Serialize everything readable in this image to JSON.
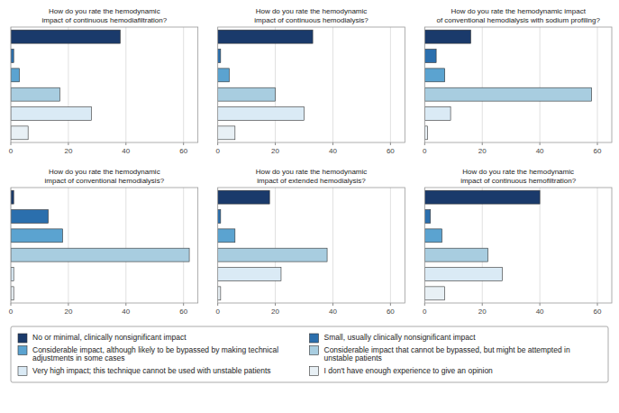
{
  "chart_data": [
    {
      "type": "bar",
      "orientation": "horizontal",
      "title": "How do you rate the hemodynamic\nimpact of continuous hemodiafiltration?",
      "categories": [
        "No or minimal, clinically nonsignificant impact",
        "Small, usually clinically nonsignificant impact",
        "Considerable impact, although likely to be bypassed by making technical\nadjustments in some cases",
        "Considerable impact that cannot be bypassed, but might be attempted in\nunstable patients",
        "Very high impact; this technique cannot be used with unstable patients",
        "I don't have enough experience to give an opinion"
      ],
      "values": [
        38,
        1,
        3,
        17,
        28,
        6
      ],
      "colors": [
        "#1a3a6b",
        "#2b6fad",
        "#5ba3d0",
        "#a8cde0",
        "#daeaf5",
        "#e8f0f5"
      ],
      "xlim": [
        0,
        65
      ],
      "xticks": [
        0,
        20,
        40,
        60
      ],
      "grid": true,
      "tick_labels": "x",
      "legend": "bottom"
    },
    {
      "type": "bar",
      "orientation": "horizontal",
      "title": "How do you rate the hemodynamic\nimpact of continuous hemodialysis?",
      "categories": [
        "No or minimal, clinically nonsignificant impact",
        "Small, usually clinically nonsignificant impact",
        "Considerable impact, although likely to be bypassed by making technical\nadjustments in some cases",
        "Considerable impact that cannot be bypassed, but might be attempted in\nunstable patients",
        "Very high impact; this technique cannot be used with unstable patients",
        "I don't have enough experience to give an opinion"
      ],
      "values": [
        33,
        1,
        4,
        20,
        30,
        6
      ],
      "colors": [
        "#1a3a6b",
        "#2b6fad",
        "#5ba3d0",
        "#a8cde0",
        "#daeaf5",
        "#e8f0f5"
      ],
      "xlim": [
        0,
        65
      ],
      "xticks": [
        0,
        20,
        40,
        60
      ],
      "grid": true,
      "tick_labels": "x",
      "legend": "bottom"
    },
    {
      "type": "bar",
      "orientation": "horizontal",
      "title": "How do you rate the hemodynamic impact\nof conventional hemodialysis with sodium profiling?",
      "categories": [
        "No or minimal, clinically nonsignificant impact",
        "Small, usually clinically nonsignificant impact",
        "Considerable impact, although likely to be bypassed by making technical\nadjustments in some cases",
        "Considerable impact that cannot be bypassed, but might be attempted in\nunstable patients",
        "Very high impact; this technique cannot be used with unstable patients",
        "I don't have enough experience to give an opinion"
      ],
      "values": [
        16,
        4,
        7,
        58,
        9,
        1
      ],
      "colors": [
        "#1a3a6b",
        "#2b6fad",
        "#5ba3d0",
        "#a8cde0",
        "#daeaf5",
        "#e8f0f5"
      ],
      "xlim": [
        0,
        65
      ],
      "xticks": [
        0,
        20,
        40,
        60
      ],
      "grid": true,
      "tick_labels": "x",
      "legend": "bottom"
    },
    {
      "type": "bar",
      "orientation": "horizontal",
      "title": "How do you rate the hemodynamic\nimpact of conventional hemodialysis?",
      "categories": [
        "No or minimal, clinically nonsignificant impact",
        "Small, usually clinically nonsignificant impact",
        "Considerable impact, although likely to be bypassed by making technical\nadjustments in some cases",
        "Considerable impact that cannot be bypassed, but might be attempted in\nunstable patients",
        "Very high impact; this technique cannot be used with unstable patients",
        "I don't have enough experience to give an opinion"
      ],
      "values": [
        1,
        13,
        18,
        62,
        1,
        1
      ],
      "colors": [
        "#1a3a6b",
        "#2b6fad",
        "#5ba3d0",
        "#a8cde0",
        "#daeaf5",
        "#e8f0f5"
      ],
      "xlim": [
        0,
        65
      ],
      "xticks": [
        0,
        20,
        40,
        60
      ],
      "grid": true,
      "tick_labels": "x",
      "legend": "bottom"
    },
    {
      "type": "bar",
      "orientation": "horizontal",
      "title": "How do you rate the hemodynamic\nimpact of extended hemodialysis?",
      "categories": [
        "No or minimal, clinically nonsignificant impact",
        "Small, usually clinically nonsignificant impact",
        "Considerable impact, although likely to be bypassed by making technical\nadjustments in some cases",
        "Considerable impact that cannot be bypassed, but might be attempted in\nunstable patients",
        "Very high impact; this technique cannot be used with unstable patients",
        "I don't have enough experience to give an opinion"
      ],
      "values": [
        18,
        1,
        6,
        38,
        22,
        1
      ],
      "colors": [
        "#1a3a6b",
        "#2b6fad",
        "#5ba3d0",
        "#a8cde0",
        "#daeaf5",
        "#e8f0f5"
      ],
      "xlim": [
        0,
        65
      ],
      "xticks": [
        0,
        20,
        40,
        60
      ],
      "grid": true,
      "tick_labels": "x",
      "legend": "bottom"
    },
    {
      "type": "bar",
      "orientation": "horizontal",
      "title": "How do you rate the hemodynamic\nimpact of continuous hemofiltration?",
      "categories": [
        "No or minimal, clinically nonsignificant impact",
        "Small, usually clinically nonsignificant impact",
        "Considerable impact, although likely to be bypassed by making technical\nadjustments in some cases",
        "Considerable impact that cannot be bypassed, but might be attempted in\nunstable patients",
        "Very high impact; this technique cannot be used with unstable patients",
        "I don't have enough experience to give an opinion"
      ],
      "values": [
        40,
        2,
        6,
        22,
        27,
        7
      ],
      "colors": [
        "#1a3a6b",
        "#2b6fad",
        "#5ba3d0",
        "#a8cde0",
        "#daeaf5",
        "#e8f0f5"
      ],
      "xlim": [
        0,
        65
      ],
      "xticks": [
        0,
        20,
        40,
        60
      ],
      "grid": true,
      "tick_labels": "x",
      "legend": "bottom"
    }
  ]
}
